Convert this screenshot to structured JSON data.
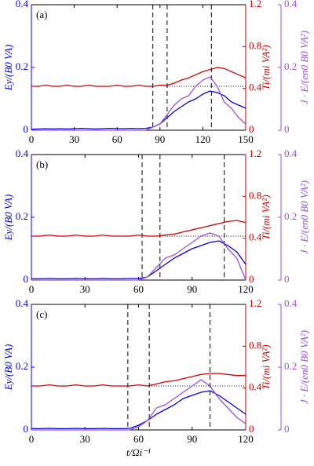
{
  "chart_data": [
    {
      "type": "line",
      "label": "(a)",
      "ylabel": "Ey/(B0 VA)",
      "y2label": "Ti/(mi VA²)",
      "y3label": "J · E/(en0 B0 VA²)",
      "x": [
        0,
        5,
        10,
        15,
        20,
        25,
        30,
        35,
        40,
        45,
        50,
        55,
        60,
        65,
        70,
        75,
        80,
        85,
        90,
        95,
        100,
        105,
        110,
        115,
        120,
        125,
        130,
        135,
        140,
        145,
        150
      ],
      "xlim": [
        0,
        150
      ],
      "xticks": [
        0,
        30,
        60,
        90,
        120,
        150
      ],
      "ylim": [
        0,
        0.4
      ],
      "yticks": [
        0,
        0.2,
        0.4
      ],
      "y2lim": [
        0,
        1.2
      ],
      "y2ticks": [
        0,
        0.4,
        0.8,
        1.2
      ],
      "y3lim": [
        0,
        0.4
      ],
      "y3ticks": [
        0,
        0.2,
        0.4
      ],
      "vlines": [
        85,
        95,
        126
      ],
      "hline": 0.42,
      "series": [
        {
          "color": "#0000dd",
          "axis": "y",
          "values": [
            0.003,
            0.004,
            0.005,
            0.004,
            0.005,
            0.004,
            0.005,
            0.006,
            0.005,
            0.004,
            0.005,
            0.006,
            0.005,
            0.005,
            0.006,
            0.005,
            0.006,
            0.01,
            0.02,
            0.04,
            0.06,
            0.075,
            0.09,
            0.1,
            0.115,
            0.125,
            0.12,
            0.11,
            0.09,
            0.08,
            0.07
          ]
        },
        {
          "color": "#cc0000",
          "axis": "y2",
          "values": [
            0.42,
            0.42,
            0.43,
            0.42,
            0.42,
            0.43,
            0.42,
            0.42,
            0.43,
            0.42,
            0.42,
            0.42,
            0.43,
            0.42,
            0.42,
            0.43,
            0.42,
            0.42,
            0.43,
            0.43,
            0.45,
            0.48,
            0.5,
            0.53,
            0.56,
            0.58,
            0.6,
            0.59,
            0.56,
            0.53,
            0.5
          ]
        },
        {
          "color": "#9a4fe0",
          "axis": "y3",
          "values": [
            0,
            0,
            0,
            0,
            0,
            0,
            0,
            0,
            0,
            0,
            0,
            0,
            0,
            0,
            0,
            0,
            0,
            0.01,
            0.02,
            0.05,
            0.08,
            0.1,
            0.11,
            0.14,
            0.16,
            0.17,
            0.14,
            0.09,
            0.07,
            0.04,
            0.02
          ]
        }
      ]
    },
    {
      "type": "line",
      "label": "(b)",
      "ylabel": "Ey/(B0 VA)",
      "y2label": "Ti/(mi VA²)",
      "y3label": "J · E/(en0 B0 VA²)",
      "x": [
        0,
        5,
        10,
        15,
        20,
        25,
        30,
        35,
        40,
        45,
        50,
        55,
        60,
        65,
        70,
        75,
        80,
        85,
        90,
        95,
        100,
        105,
        110,
        115,
        120
      ],
      "xlim": [
        0,
        120
      ],
      "xticks": [
        0,
        30,
        60,
        90,
        120
      ],
      "ylim": [
        0,
        0.4
      ],
      "yticks": [
        0,
        0.2,
        0.4
      ],
      "y2lim": [
        0,
        1.2
      ],
      "y2ticks": [
        0,
        0.4,
        0.8,
        1.2
      ],
      "y3lim": [
        0,
        0.4
      ],
      "y3ticks": [
        0,
        0.2,
        0.4
      ],
      "vlines": [
        62,
        72,
        108
      ],
      "hline": 0.42,
      "series": [
        {
          "color": "#0000dd",
          "axis": "y",
          "values": [
            0.004,
            0.004,
            0.005,
            0.004,
            0.004,
            0.005,
            0.004,
            0.004,
            0.005,
            0.004,
            0.004,
            0.005,
            0.005,
            0.01,
            0.03,
            0.05,
            0.07,
            0.085,
            0.1,
            0.11,
            0.12,
            0.125,
            0.11,
            0.09,
            0.05
          ]
        },
        {
          "color": "#cc0000",
          "axis": "y2",
          "values": [
            0.42,
            0.42,
            0.43,
            0.42,
            0.42,
            0.43,
            0.42,
            0.42,
            0.43,
            0.42,
            0.42,
            0.42,
            0.43,
            0.42,
            0.42,
            0.43,
            0.44,
            0.46,
            0.48,
            0.5,
            0.52,
            0.54,
            0.56,
            0.57,
            0.55
          ]
        },
        {
          "color": "#9a4fe0",
          "axis": "y3",
          "values": [
            0,
            0,
            0,
            0,
            0,
            0,
            0,
            0,
            0,
            0,
            0,
            0,
            0,
            0.01,
            0.04,
            0.07,
            0.08,
            0.1,
            0.12,
            0.14,
            0.15,
            0.14,
            0.1,
            0.07,
            0
          ]
        }
      ]
    },
    {
      "type": "line",
      "label": "(c)",
      "ylabel": "Ey/(B0 VA)",
      "y2label": "Ti/(mi VA²)",
      "y3label": "J · E/(en0 B0 VA²)",
      "xlabel": "t/Ωi⁻¹",
      "x": [
        0,
        5,
        10,
        15,
        20,
        25,
        30,
        35,
        40,
        45,
        50,
        55,
        60,
        65,
        70,
        75,
        80,
        85,
        90,
        95,
        100,
        105,
        110,
        115,
        120
      ],
      "xlim": [
        0,
        120
      ],
      "xticks": [
        0,
        30,
        60,
        90,
        120
      ],
      "ylim": [
        0,
        0.4
      ],
      "yticks": [
        0,
        0.2,
        0.4
      ],
      "y2lim": [
        0,
        1.2
      ],
      "y2ticks": [
        0,
        0.4,
        0.8,
        1.2
      ],
      "y3lim": [
        0,
        0.4
      ],
      "y3ticks": [
        0,
        0.2,
        0.4
      ],
      "vlines": [
        54,
        66,
        100
      ],
      "hline": 0.42,
      "series": [
        {
          "color": "#0000dd",
          "axis": "y",
          "values": [
            0.004,
            0.004,
            0.005,
            0.004,
            0.004,
            0.005,
            0.004,
            0.004,
            0.005,
            0.004,
            0.004,
            0.005,
            0.015,
            0.03,
            0.05,
            0.065,
            0.08,
            0.1,
            0.11,
            0.12,
            0.125,
            0.11,
            0.09,
            0.07,
            0.05
          ]
        },
        {
          "color": "#cc0000",
          "axis": "y2",
          "values": [
            0.42,
            0.42,
            0.43,
            0.42,
            0.42,
            0.43,
            0.42,
            0.42,
            0.43,
            0.42,
            0.42,
            0.42,
            0.43,
            0.42,
            0.44,
            0.46,
            0.47,
            0.49,
            0.51,
            0.53,
            0.54,
            0.54,
            0.53,
            0.52,
            0.52
          ]
        },
        {
          "color": "#9a4fe0",
          "axis": "y3",
          "values": [
            0,
            0,
            0,
            0,
            0,
            0,
            0,
            0,
            0,
            0,
            0,
            0,
            0.01,
            0.03,
            0.07,
            0.08,
            0.1,
            0.12,
            0.14,
            0.16,
            0.14,
            0.1,
            0.07,
            0.04,
            0.02
          ]
        }
      ]
    }
  ]
}
